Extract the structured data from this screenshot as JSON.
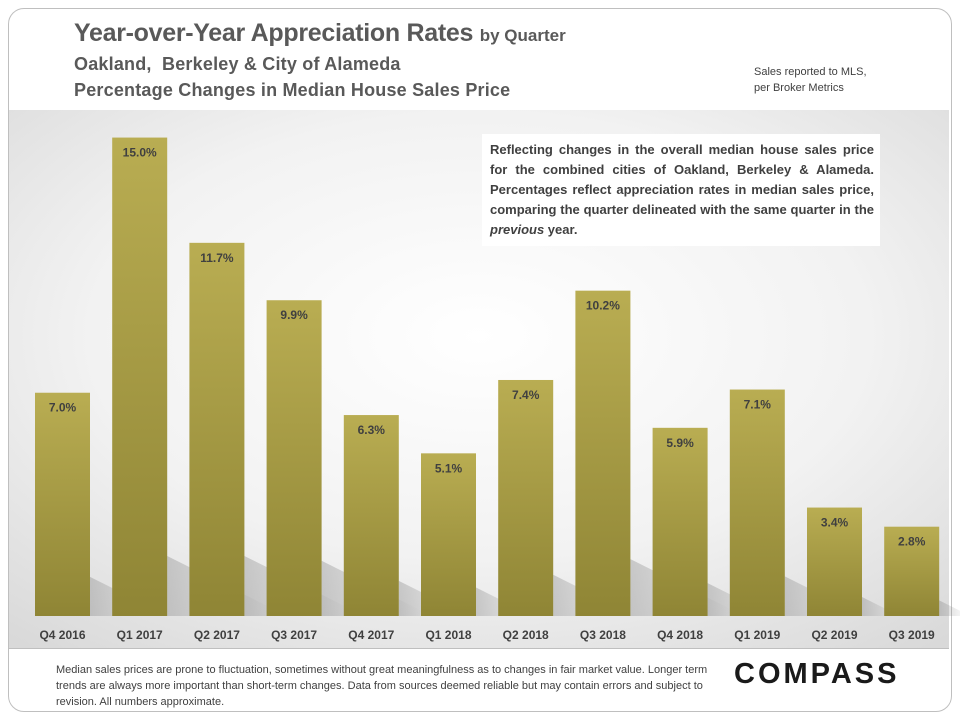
{
  "header": {
    "title_main": "Year-over-Year Appreciation Rates",
    "title_suffix": "by Quarter",
    "subtitle_line1": "Oakland,  Berkeley & City of Alameda",
    "subtitle_line2": "Percentage Changes in Median House Sales Price"
  },
  "source": {
    "line1": "Sales reported to MLS,",
    "line2": "per Broker Metrics"
  },
  "note": {
    "before": "Reflecting changes in the overall median house sales price for the combined cities of Oakland, Berkeley & Alameda. Percentages reflect appreciation rates in median sales price, comparing the quarter delineated with the same quarter in the ",
    "emphasis": "previous",
    "after": " year."
  },
  "footer": {
    "disclaimer": "Median sales prices are prone to fluctuation, sometimes without great meaningfulness as to changes in fair market value. Longer term trends are always more important than short-term changes. Data from sources deemed reliable but may contain errors and subject to revision. All numbers approximate.",
    "logo": "COMPASS"
  },
  "colors": {
    "bar_top": "#b9ad52",
    "bar_bottom": "#8f8535",
    "label_text": "#404040"
  },
  "chart_data": {
    "type": "bar",
    "categories": [
      "Q4 2016",
      "Q1 2017",
      "Q2 2017",
      "Q3 2017",
      "Q4 2017",
      "Q1 2018",
      "Q2 2018",
      "Q3 2018",
      "Q4 2018",
      "Q1 2019",
      "Q2 2019",
      "Q3 2019"
    ],
    "values": [
      7.0,
      15.0,
      11.7,
      9.9,
      6.3,
      5.1,
      7.4,
      10.2,
      5.9,
      7.1,
      3.4,
      2.8
    ],
    "data_labels": [
      "7.0%",
      "15.0%",
      "11.7%",
      "9.9%",
      "6.3%",
      "5.1%",
      "7.4%",
      "10.2%",
      "5.9%",
      "7.1%",
      "3.4%",
      "2.8%"
    ],
    "ylim": [
      0,
      15.3
    ],
    "grid": false,
    "legend": "none"
  }
}
